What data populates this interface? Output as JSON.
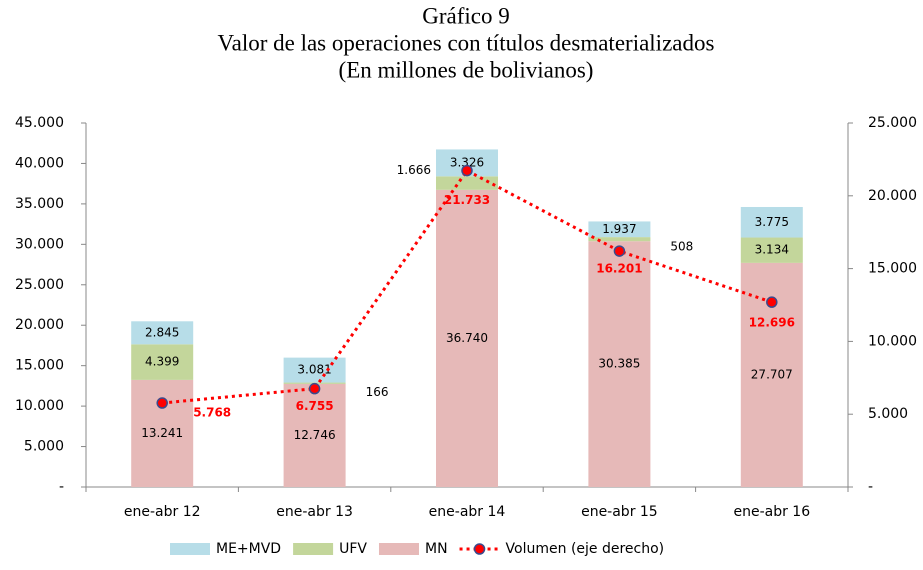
{
  "chart_data": {
    "type": "bar",
    "stacked": true,
    "title_lines": [
      "Gráfico 9",
      "Valor de las operaciones con títulos desmaterializados",
      "(En millones de bolivianos)"
    ],
    "categories": [
      "ene-abr 12",
      "ene-abr 13",
      "ene-abr 14",
      "ene-abr 15",
      "ene-abr 16"
    ],
    "series": [
      {
        "name": "MN",
        "color": "#e6b9b8",
        "values": [
          13241,
          12746,
          36740,
          30385,
          27707
        ],
        "value_labels": [
          "13.241",
          "12.746",
          "36.740",
          "30.385",
          "27.707"
        ]
      },
      {
        "name": "UFV",
        "color": "#c3d69b",
        "values": [
          4399,
          166,
          1666,
          508,
          3134
        ],
        "value_labels": [
          "4.399",
          "166",
          "1.666",
          "508",
          "3.134"
        ]
      },
      {
        "name": "ME+MVD",
        "color": "#b7dde8",
        "values": [
          2845,
          3081,
          3326,
          1937,
          3775
        ],
        "value_labels": [
          "2.845",
          "3.081",
          "3.326",
          "1.937",
          "3.775"
        ]
      },
      {
        "name": "Volumen (eje derecho)",
        "type": "line",
        "axis": "y2",
        "color": "#ff0000",
        "marker_edge": "#3b4a8c",
        "values": [
          5768,
          6755,
          21733,
          16201,
          12696
        ],
        "value_labels": [
          "5.768",
          "6.755",
          "21.733",
          "16.201",
          "12.696"
        ]
      }
    ],
    "legend_order": [
      2,
      1,
      0,
      3
    ],
    "ylim": [
      0,
      45000
    ],
    "yticks": [
      {
        "value": 0,
        "label": "-"
      },
      {
        "value": 5000,
        "label": "5.000"
      },
      {
        "value": 10000,
        "label": "10.000"
      },
      {
        "value": 15000,
        "label": "15.000"
      },
      {
        "value": 20000,
        "label": "20.000"
      },
      {
        "value": 25000,
        "label": "25.000"
      },
      {
        "value": 30000,
        "label": "30.000"
      },
      {
        "value": 35000,
        "label": "35.000"
      },
      {
        "value": 40000,
        "label": "40.000"
      },
      {
        "value": 45000,
        "label": "45.000"
      }
    ],
    "y2lim": [
      0,
      25000
    ],
    "y2ticks": [
      {
        "value": 0,
        "label": "-"
      },
      {
        "value": 5000,
        "label": "5.000"
      },
      {
        "value": 10000,
        "label": "10.000"
      },
      {
        "value": 15000,
        "label": "15.000"
      },
      {
        "value": 20000,
        "label": "20.000"
      },
      {
        "value": 25000,
        "label": "25.000"
      }
    ]
  }
}
